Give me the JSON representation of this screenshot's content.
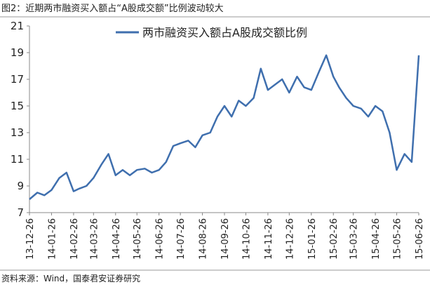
{
  "chart_data": {
    "type": "line",
    "title": "图2：近期两市融资买入额占“A股成交额”比例波动较大",
    "source": "资料来源：Wind，国泰君安证券研究",
    "x": [
      "13-12-26",
      "14-01-06",
      "14-01-16",
      "14-01-26",
      "14-02-06",
      "14-02-16",
      "14-02-26",
      "14-03-06",
      "14-03-16",
      "14-03-26",
      "14-04-06",
      "14-04-16",
      "14-04-26",
      "14-05-06",
      "14-05-16",
      "14-05-26",
      "14-06-06",
      "14-06-16",
      "14-06-26",
      "14-07-06",
      "14-07-16",
      "14-07-26",
      "14-08-06",
      "14-08-16",
      "14-08-26",
      "14-09-06",
      "14-09-16",
      "14-09-26",
      "14-10-06",
      "14-10-16",
      "14-10-26",
      "14-11-06",
      "14-11-16",
      "14-11-26",
      "14-12-06",
      "14-12-16",
      "14-12-26",
      "15-01-06",
      "15-01-16",
      "15-01-26",
      "15-02-06",
      "15-02-16",
      "15-02-26",
      "15-03-06",
      "15-03-16",
      "15-03-26",
      "15-04-06",
      "15-04-16",
      "15-04-26",
      "15-05-06",
      "15-05-16",
      "15-05-26",
      "15-06-06",
      "15-06-16",
      "15-06-26"
    ],
    "series": [
      {
        "name": "两市融资买入额占A股成交额比例",
        "color": "#3f6fae",
        "values": [
          8.0,
          8.5,
          8.3,
          8.7,
          9.6,
          10.0,
          8.6,
          8.8,
          9.0,
          9.6,
          10.6,
          11.4,
          9.8,
          10.2,
          9.8,
          10.2,
          10.3,
          10.0,
          10.2,
          10.8,
          12.0,
          12.2,
          12.4,
          11.9,
          12.8,
          13.0,
          14.2,
          15.0,
          14.2,
          15.4,
          15.0,
          15.6,
          17.8,
          16.2,
          16.6,
          17.0,
          16.0,
          17.2,
          16.4,
          16.2,
          17.6,
          18.8,
          17.2,
          16.4,
          15.6,
          15.0,
          14.8,
          14.2,
          15.0,
          14.6,
          13.0,
          10.2,
          11.4,
          10.8,
          18.8
        ]
      }
    ],
    "xlim": [
      "13-12-26",
      "15-06-26"
    ],
    "xticks": [
      "13-12-26",
      "14-01-26",
      "14-02-26",
      "14-03-26",
      "14-04-26",
      "14-05-26",
      "14-06-26",
      "14-07-26",
      "14-08-26",
      "14-09-26",
      "14-10-26",
      "14-11-26",
      "14-12-26",
      "15-01-26",
      "15-02-26",
      "15-03-26",
      "15-04-26",
      "15-05-26",
      "15-06-26"
    ],
    "ylim": [
      7,
      21
    ],
    "yticks": [
      7,
      9,
      11,
      13,
      15,
      17,
      19,
      21
    ],
    "legend": "top"
  }
}
